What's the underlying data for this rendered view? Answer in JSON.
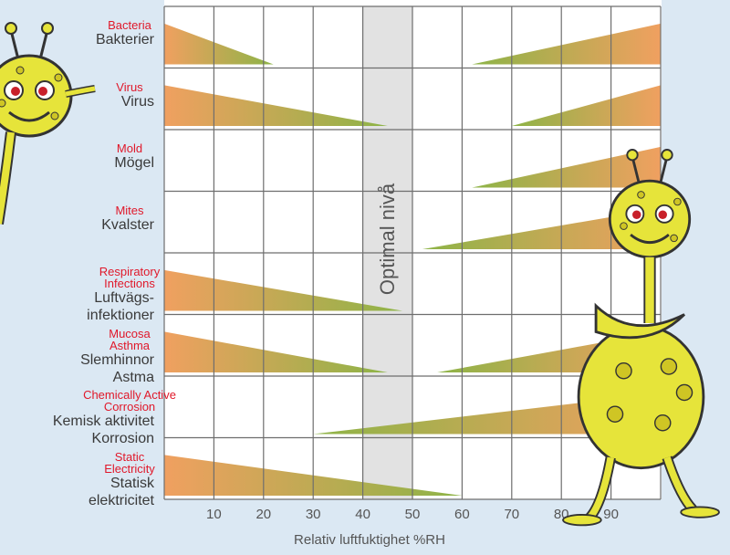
{
  "colors": {
    "panel": "#dbe8f3",
    "grid": "#6e6e6e",
    "optimal_band": "#e2e2e2",
    "wedge_orange": "#f0a060",
    "wedge_green": "#8db447",
    "english_label": "#e0182a",
    "swedish_label": "#3a3a3a",
    "mascot_body": "#e6e43a"
  },
  "chart_data": {
    "type": "area",
    "xlabel": "Relativ luftfuktighet %RH",
    "xlim": [
      0,
      100
    ],
    "x_ticks": [
      10,
      20,
      30,
      40,
      50,
      60,
      70,
      80,
      90
    ],
    "grid": true,
    "optimal_band": {
      "label": "Optimal nivå",
      "range": [
        40,
        50
      ]
    },
    "rows": [
      {
        "label_en": [
          "Bacteria"
        ],
        "label_sv": [
          "Bakterier"
        ],
        "low": {
          "from": 0,
          "to": 22
        },
        "high": {
          "from": 62,
          "to": 100
        }
      },
      {
        "label_en": [
          "Virus"
        ],
        "label_sv": [
          "Virus"
        ],
        "low": {
          "from": 0,
          "to": 45
        },
        "high": {
          "from": 70,
          "to": 100
        }
      },
      {
        "label_en": [
          "Mold"
        ],
        "label_sv": [
          "Mögel"
        ],
        "low": null,
        "high": {
          "from": 62,
          "to": 100
        }
      },
      {
        "label_en": [
          "Mites"
        ],
        "label_sv": [
          "Kvalster"
        ],
        "low": null,
        "high": {
          "from": 52,
          "to": 100
        }
      },
      {
        "label_en": [
          "Respiratory",
          "Infections"
        ],
        "label_sv": [
          "Luftvägs-",
          "infektioner"
        ],
        "low": {
          "from": 0,
          "to": 48
        },
        "high": null
      },
      {
        "label_en": [
          "Mucosa",
          "Asthma"
        ],
        "label_sv": [
          "Slemhinnor",
          "Astma"
        ],
        "low": {
          "from": 0,
          "to": 45
        },
        "high": {
          "from": 55,
          "to": 100
        }
      },
      {
        "label_en": [
          "Chemically Active",
          "Corrosion"
        ],
        "label_sv": [
          "Kemisk aktivitet",
          "Korrosion"
        ],
        "low": null,
        "high": {
          "from": 30,
          "to": 100
        }
      },
      {
        "label_en": [
          "Static",
          "Electricity"
        ],
        "label_sv": [
          "Statisk",
          "elektricitet"
        ],
        "low": {
          "from": 0,
          "to": 60
        },
        "high": null
      }
    ]
  }
}
